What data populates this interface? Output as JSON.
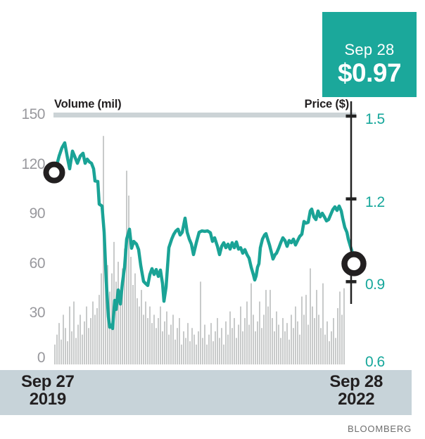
{
  "callout": {
    "date": "Sep 28",
    "price": "$0.97"
  },
  "axes": {
    "volume_title": "Volume (mil)",
    "price_title": "Price ($)"
  },
  "x_axis": {
    "start_line1": "Sep 27",
    "start_line2": "2019",
    "end_line1": "Sep 28",
    "end_line2": "2022"
  },
  "source": "BLOOMBERG",
  "colors": {
    "teal_line": "#1aa396",
    "teal_box": "#1ba89b",
    "teal_label": "#16a79b",
    "bar_gray": "#c3c4c4",
    "axis_black": "#232323",
    "tick_gray": "#98989d",
    "band_blue": "#c7d3d9",
    "gridline_gray": "#ccd3d6",
    "text_dark": "#221f20",
    "source_gray": "#6e6e6e"
  },
  "chart_data": {
    "type": "line",
    "title": "",
    "x_range_labels": [
      "Sep 27 2019",
      "Sep 28 2022"
    ],
    "price_axis": {
      "label": "Price ($)",
      "ticks": [
        0.6,
        0.9,
        1.2,
        1.5
      ],
      "range": [
        0.6,
        1.5
      ],
      "position": "right"
    },
    "volume_axis": {
      "label": "Volume (mil)",
      "ticks": [
        0,
        30,
        60,
        90,
        120,
        150
      ],
      "range": [
        0,
        150
      ],
      "position": "left"
    },
    "annotations": {
      "last_date": "Sep 28",
      "last_price": 0.97,
      "start_marker_price": 1.32,
      "end_marker_price": 0.97
    },
    "series": [
      {
        "name": "Price ($)",
        "type": "line",
        "points": [
          [
            80,
            1.316
          ],
          [
            84,
            1.355
          ],
          [
            88,
            1.385
          ],
          [
            92,
            1.403
          ],
          [
            96,
            1.347
          ],
          [
            99,
            1.309
          ],
          [
            103,
            1.373
          ],
          [
            106,
            1.355
          ],
          [
            110,
            1.329
          ],
          [
            114,
            1.355
          ],
          [
            118,
            1.365
          ],
          [
            121,
            1.329
          ],
          [
            124,
            1.344
          ],
          [
            127,
            1.334
          ],
          [
            130,
            1.329
          ],
          [
            133,
            1.309
          ],
          [
            135,
            1.265
          ],
          [
            139,
            1.263
          ],
          [
            141,
            1.181
          ],
          [
            145,
            1.174
          ],
          [
            148,
            1.079
          ],
          [
            151,
            0.901
          ],
          [
            154,
            0.773
          ],
          [
            156,
            0.735
          ],
          [
            158,
            0.743
          ],
          [
            160,
            0.73
          ],
          [
            163,
            0.832
          ],
          [
            165,
            0.799
          ],
          [
            168,
            0.87
          ],
          [
            171,
            0.819
          ],
          [
            174,
            0.896
          ],
          [
            177,
            0.952
          ],
          [
            180,
            1.054
          ],
          [
            184,
            1.09
          ],
          [
            187,
            1.021
          ],
          [
            190,
            1.046
          ],
          [
            194,
            1.036
          ],
          [
            197,
            1.016
          ],
          [
            200,
            0.959
          ],
          [
            204,
            0.901
          ],
          [
            207,
            0.893
          ],
          [
            210,
            0.886
          ],
          [
            213,
            0.926
          ],
          [
            216,
            0.947
          ],
          [
            219,
            0.926
          ],
          [
            222,
            0.944
          ],
          [
            225,
            0.919
          ],
          [
            228,
            0.942
          ],
          [
            231,
            0.893
          ],
          [
            233,
            0.829
          ],
          [
            236,
            0.88
          ],
          [
            240,
            1.023
          ],
          [
            244,
            1.054
          ],
          [
            247,
            1.072
          ],
          [
            250,
            1.084
          ],
          [
            253,
            1.09
          ],
          [
            256,
            1.069
          ],
          [
            259,
            1.079
          ],
          [
            263,
            1.13
          ],
          [
            266,
            1.079
          ],
          [
            269,
            1.054
          ],
          [
            272,
            1.036
          ],
          [
            275,
            0.998
          ],
          [
            279,
            1.041
          ],
          [
            283,
            1.079
          ],
          [
            287,
            1.084
          ],
          [
            291,
            1.082
          ],
          [
            295,
            1.084
          ],
          [
            299,
            1.077
          ],
          [
            302,
            1.046
          ],
          [
            305,
            1.059
          ],
          [
            309,
            1.028
          ],
          [
            312,
            0.998
          ],
          [
            315,
            1.028
          ],
          [
            318,
            1.041
          ],
          [
            321,
            1.023
          ],
          [
            324,
            1.036
          ],
          [
            327,
            1.018
          ],
          [
            330,
            1.041
          ],
          [
            333,
            1.023
          ],
          [
            336,
            1.044
          ],
          [
            339,
            1.018
          ],
          [
            342,
            1.023
          ],
          [
            345,
            1.003
          ],
          [
            348,
            1.016
          ],
          [
            351,
            0.998
          ],
          [
            354,
            0.985
          ],
          [
            357,
            0.952
          ],
          [
            360,
            0.926
          ],
          [
            362,
            0.906
          ],
          [
            364,
            0.921
          ],
          [
            366,
            0.952
          ],
          [
            368,
            0.965
          ],
          [
            370,
            1.023
          ],
          [
            373,
            1.054
          ],
          [
            376,
            1.069
          ],
          [
            378,
            1.074
          ],
          [
            381,
            1.049
          ],
          [
            383,
            1.033
          ],
          [
            386,
            1.003
          ],
          [
            388,
            0.982
          ],
          [
            391,
            0.998
          ],
          [
            393,
            1.003
          ],
          [
            396,
            1.021
          ],
          [
            399,
            1.041
          ],
          [
            402,
            1.059
          ],
          [
            405,
            1.049
          ],
          [
            408,
            1.028
          ],
          [
            411,
            1.049
          ],
          [
            414,
            1.041
          ],
          [
            417,
            1.054
          ],
          [
            420,
            1.033
          ],
          [
            423,
            1.049
          ],
          [
            426,
            1.064
          ],
          [
            429,
            1.072
          ],
          [
            432,
            1.118
          ],
          [
            435,
            1.112
          ],
          [
            438,
            1.115
          ],
          [
            441,
            1.156
          ],
          [
            443,
            1.163
          ],
          [
            446,
            1.135
          ],
          [
            449,
            1.125
          ],
          [
            452,
            1.156
          ],
          [
            455,
            1.135
          ],
          [
            458,
            1.148
          ],
          [
            461,
            1.135
          ],
          [
            464,
            1.12
          ],
          [
            467,
            1.125
          ],
          [
            470,
            1.143
          ],
          [
            473,
            1.161
          ],
          [
            476,
            1.171
          ],
          [
            479,
            1.158
          ],
          [
            482,
            1.174
          ],
          [
            485,
            1.156
          ],
          [
            487,
            1.13
          ],
          [
            490,
            1.097
          ],
          [
            493,
            1.079
          ],
          [
            495,
            1.054
          ],
          [
            498,
            1.028
          ],
          [
            501,
            1.003
          ],
          [
            503,
            0.977
          ],
          [
            505,
            0.97
          ]
        ]
      },
      {
        "name": "Volume (mil)",
        "type": "bar",
        "bar_start_x": 78,
        "bar_pitch": 3,
        "values": [
          12,
          18,
          25,
          15,
          30,
          22,
          14,
          35,
          20,
          38,
          16,
          24,
          30,
          18,
          26,
          35,
          22,
          28,
          38,
          30,
          34,
          42,
          55,
          138,
          48,
          60,
          44,
          55,
          74,
          50,
          62,
          45,
          58,
          70,
          117,
          102,
          65,
          48,
          55,
          40,
          35,
          45,
          30,
          38,
          28,
          35,
          25,
          30,
          22,
          28,
          35,
          20,
          26,
          32,
          18,
          24,
          30,
          15,
          22,
          28,
          12,
          20,
          16,
          25,
          14,
          22,
          18,
          12,
          20,
          50,
          16,
          24,
          12,
          18,
          25,
          14,
          20,
          28,
          16,
          22,
          12,
          26,
          18,
          32,
          22,
          28,
          16,
          24,
          35,
          20,
          28,
          38,
          24,
          49,
          30,
          20,
          26,
          38,
          22,
          30,
          45,
          35,
          45,
          28,
          20,
          32,
          24,
          16,
          28,
          20,
          25,
          15,
          30,
          22,
          35,
          26,
          18,
          41,
          30,
          42,
          24,
          58,
          35,
          28,
          45,
          30,
          22,
          49,
          18,
          26,
          14,
          20,
          28,
          16,
          34,
          44,
          30,
          46
        ]
      }
    ]
  }
}
